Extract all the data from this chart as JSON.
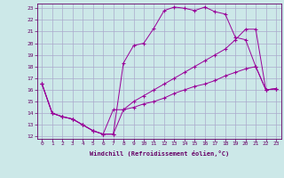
{
  "title": "",
  "xlabel": "Windchill (Refroidissement éolien,°C)",
  "bg_color": "#cce8e8",
  "grid_color": "#aaaacc",
  "line_color": "#990099",
  "xlim": [
    -0.5,
    23.5
  ],
  "ylim": [
    11.8,
    23.4
  ],
  "xticks": [
    0,
    1,
    2,
    3,
    4,
    5,
    6,
    7,
    8,
    9,
    10,
    11,
    12,
    13,
    14,
    15,
    16,
    17,
    18,
    19,
    20,
    21,
    22,
    23
  ],
  "yticks": [
    12,
    13,
    14,
    15,
    16,
    17,
    18,
    19,
    20,
    21,
    22,
    23
  ],
  "curve1_x": [
    0,
    1,
    2,
    3,
    4,
    5,
    6,
    7,
    8,
    9,
    10,
    11,
    12,
    13,
    14,
    15,
    16,
    17,
    18,
    19,
    20,
    21,
    22,
    23
  ],
  "curve1_y": [
    16.5,
    14.0,
    13.7,
    13.5,
    13.0,
    12.5,
    12.2,
    12.2,
    18.3,
    19.8,
    20.0,
    21.3,
    22.8,
    23.1,
    23.0,
    22.8,
    23.1,
    22.7,
    22.5,
    20.5,
    20.3,
    18.0,
    16.0,
    16.1
  ],
  "curve2_x": [
    0,
    1,
    2,
    3,
    4,
    5,
    6,
    7,
    8,
    9,
    10,
    11,
    12,
    13,
    14,
    15,
    16,
    17,
    18,
    19,
    20,
    21,
    22,
    23
  ],
  "curve2_y": [
    16.5,
    14.0,
    13.7,
    13.5,
    13.0,
    12.5,
    12.2,
    14.3,
    14.3,
    14.5,
    14.8,
    15.0,
    15.3,
    15.7,
    16.0,
    16.3,
    16.5,
    16.8,
    17.2,
    17.5,
    17.8,
    18.0,
    16.0,
    16.1
  ],
  "curve3_x": [
    0,
    1,
    2,
    3,
    4,
    5,
    6,
    7,
    8,
    9,
    10,
    11,
    12,
    13,
    14,
    15,
    16,
    17,
    18,
    19,
    20,
    21,
    22,
    23
  ],
  "curve3_y": [
    16.5,
    14.0,
    13.7,
    13.5,
    13.0,
    12.5,
    12.2,
    12.2,
    14.3,
    15.0,
    15.5,
    16.0,
    16.5,
    17.0,
    17.5,
    18.0,
    18.5,
    19.0,
    19.5,
    20.3,
    21.2,
    21.2,
    16.0,
    16.1
  ]
}
